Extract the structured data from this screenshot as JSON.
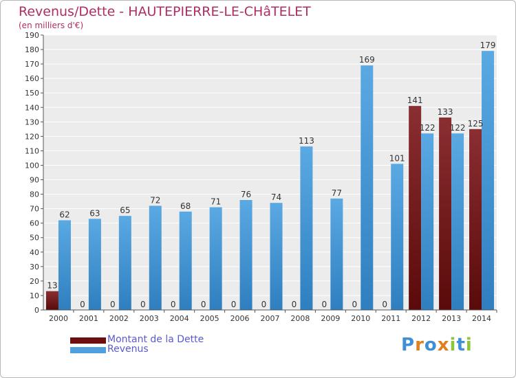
{
  "header": {
    "title": "Revenus/Dette - HAUTEPIERRE-LE-CHâTELET",
    "subtitle": "(en milliers d'€)"
  },
  "legend": {
    "items": [
      {
        "label": "Montant de la Dette",
        "color": "#6e0e0e"
      },
      {
        "label": "Revenus",
        "color": "#4ea1de"
      }
    ]
  },
  "logo": {
    "text": "Proxiti",
    "colors": [
      "#3e8fd6",
      "#e0801c",
      "#3e8fd6",
      "#e0801c",
      "#8cc43c",
      "#3e8fd6",
      "#8cc43c"
    ]
  },
  "chart_data": {
    "type": "bar",
    "title": "Revenus/Dette - HAUTEPIERRE-LE-CHâTELET",
    "subtitle": "(en milliers d'€)",
    "categories": [
      "2000",
      "2001",
      "2002",
      "2003",
      "2004",
      "2005",
      "2006",
      "2007",
      "2008",
      "2009",
      "2010",
      "2011",
      "2012",
      "2013",
      "2014"
    ],
    "series": [
      {
        "name": "Montant de la Dette",
        "color": "#7a1e22",
        "values": [
          13,
          0,
          0,
          0,
          0,
          0,
          0,
          0,
          0,
          0,
          0,
          0,
          141,
          133,
          125
        ]
      },
      {
        "name": "Revenus",
        "color": "#4ea1de",
        "values": [
          62,
          63,
          65,
          72,
          68,
          71,
          76,
          74,
          113,
          77,
          169,
          101,
          122,
          122,
          179
        ]
      }
    ],
    "ylim": [
      0,
      190
    ],
    "yticks": [
      0,
      10,
      20,
      30,
      40,
      50,
      60,
      70,
      80,
      90,
      100,
      110,
      120,
      130,
      140,
      150,
      160,
      170,
      180,
      190
    ],
    "grid": true,
    "legend_position": "bottom-left"
  }
}
